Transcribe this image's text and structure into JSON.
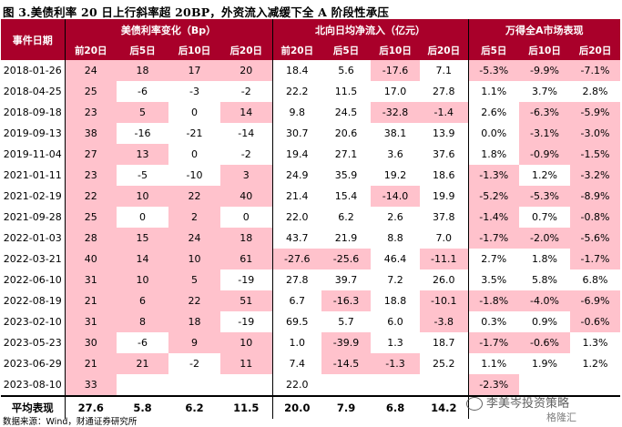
{
  "title": "图 3.美债利率 20 日上行斜率超 20BP，外资流入减缓下全 A 阶段性承压",
  "header": {
    "date_col": "事件日期",
    "groups": [
      "美债利率变化（Bp）",
      "北向日均净流入（亿元）",
      "万得全A市场表现"
    ],
    "sub": [
      "前20日",
      "后5日",
      "后10日",
      "后20日",
      "前20日",
      "后5日",
      "后10日",
      "后20日",
      "后5日",
      "后10日",
      "后20日"
    ]
  },
  "rows": [
    {
      "date": "2018-01-26",
      "cells": [
        "24",
        "18",
        "17",
        "20",
        "18.4",
        "5.6",
        "-17.6",
        "7.1",
        "-5.3%",
        "-9.9%",
        "-7.1%"
      ],
      "hl": [
        0,
        1,
        2,
        3,
        6,
        8,
        9,
        10
      ]
    },
    {
      "date": "2018-04-25",
      "cells": [
        "25",
        "-6",
        "-3",
        "-2",
        "22.2",
        "11.5",
        "17.0",
        "27.8",
        "1.1%",
        "3.7%",
        "2.8%"
      ],
      "hl": [
        0
      ]
    },
    {
      "date": "2018-09-18",
      "cells": [
        "23",
        "5",
        "0",
        "14",
        "9.8",
        "24.5",
        "-32.8",
        "-1.4",
        "2.6%",
        "-6.3%",
        "-5.9%"
      ],
      "hl": [
        0,
        1,
        3,
        6,
        7,
        9,
        10
      ]
    },
    {
      "date": "2019-09-13",
      "cells": [
        "38",
        "-16",
        "-21",
        "-14",
        "30.7",
        "20.6",
        "38.1",
        "13.9",
        "0.0%",
        "-3.1%",
        "-3.0%"
      ],
      "hl": [
        0,
        9,
        10
      ]
    },
    {
      "date": "2019-11-04",
      "cells": [
        "27",
        "13",
        "0",
        "-2",
        "19.4",
        "27.1",
        "3.6",
        "37.6",
        "1.8%",
        "-0.9%",
        "-1.5%"
      ],
      "hl": [
        0,
        1,
        9,
        10
      ]
    },
    {
      "date": "2021-01-11",
      "cells": [
        "23",
        "-5",
        "-10",
        "3",
        "24.9",
        "35.9",
        "19.2",
        "18.6",
        "-1.3%",
        "1.2%",
        "-3.2%"
      ],
      "hl": [
        0,
        3,
        8,
        10
      ]
    },
    {
      "date": "2021-02-19",
      "cells": [
        "22",
        "10",
        "22",
        "40",
        "21.4",
        "15.4",
        "-14.0",
        "19.9",
        "-5.2%",
        "-5.3%",
        "-8.9%"
      ],
      "hl": [
        0,
        1,
        2,
        3,
        6,
        8,
        9,
        10
      ]
    },
    {
      "date": "2021-09-28",
      "cells": [
        "25",
        "0",
        "2",
        "0",
        "22.0",
        "6.2",
        "2.6",
        "37.8",
        "-1.4%",
        "0.7%",
        "-0.8%"
      ],
      "hl": [
        0,
        2,
        8,
        10
      ]
    },
    {
      "date": "2022-01-03",
      "cells": [
        "28",
        "15",
        "24",
        "18",
        "43.7",
        "21.9",
        "8.8",
        "7.0",
        "-1.7%",
        "-2.0%",
        "-5.6%"
      ],
      "hl": [
        0,
        1,
        2,
        3,
        8,
        9,
        10
      ]
    },
    {
      "date": "2022-03-21",
      "cells": [
        "40",
        "14",
        "10",
        "61",
        "-27.6",
        "-25.6",
        "46.4",
        "-11.1",
        "2.7%",
        "1.8%",
        "-1.7%"
      ],
      "hl": [
        0,
        1,
        2,
        3,
        4,
        5,
        7,
        10
      ]
    },
    {
      "date": "2022-06-10",
      "cells": [
        "31",
        "10",
        "5",
        "-19",
        "27.8",
        "39.7",
        "7.2",
        "26.0",
        "3.5%",
        "5.8%",
        "6.8%"
      ],
      "hl": [
        0,
        1,
        2
      ]
    },
    {
      "date": "2022-08-19",
      "cells": [
        "21",
        "6",
        "22",
        "51",
        "6.7",
        "-16.3",
        "18.8",
        "-10.1",
        "-1.8%",
        "-4.0%",
        "-6.9%"
      ],
      "hl": [
        0,
        1,
        2,
        3,
        5,
        7,
        8,
        9,
        10
      ]
    },
    {
      "date": "2023-02-10",
      "cells": [
        "31",
        "8",
        "18",
        "-19",
        "69.5",
        "5.7",
        "6.0",
        "-3.8",
        "0.3%",
        "0.9%",
        "-0.6%"
      ],
      "hl": [
        0,
        1,
        2,
        7,
        10
      ]
    },
    {
      "date": "2023-05-23",
      "cells": [
        "30",
        "-6",
        "9",
        "10",
        "1.0",
        "-39.9",
        "1.3",
        "18.7",
        "-1.7%",
        "-0.6%",
        "1.3%"
      ],
      "hl": [
        0,
        2,
        3,
        5,
        8,
        9
      ]
    },
    {
      "date": "2023-06-29",
      "cells": [
        "21",
        "21",
        "-2",
        "11",
        "7.4",
        "-14.5",
        "-1.3",
        "25.2",
        "1.1%",
        "1.9%",
        "1.2%"
      ],
      "hl": [
        0,
        1,
        3,
        5,
        6
      ]
    },
    {
      "date": "2023-08-10",
      "cells": [
        "33",
        "",
        "",
        "",
        "22.0",
        "",
        "",
        "",
        "-2.3%",
        "",
        ""
      ],
      "hl": [
        0,
        8
      ]
    }
  ],
  "average": {
    "label": "平均表现",
    "cells": [
      "27.6",
      "5.8",
      "6.2",
      "11.5",
      "20.0",
      "7.9",
      "6.8",
      "14.2",
      "",
      "",
      ""
    ]
  },
  "source": "数据来源：Wind，财通证券研究所",
  "watermark": "李美岑投资策略",
  "watermark_sub": "格隆汇"
}
